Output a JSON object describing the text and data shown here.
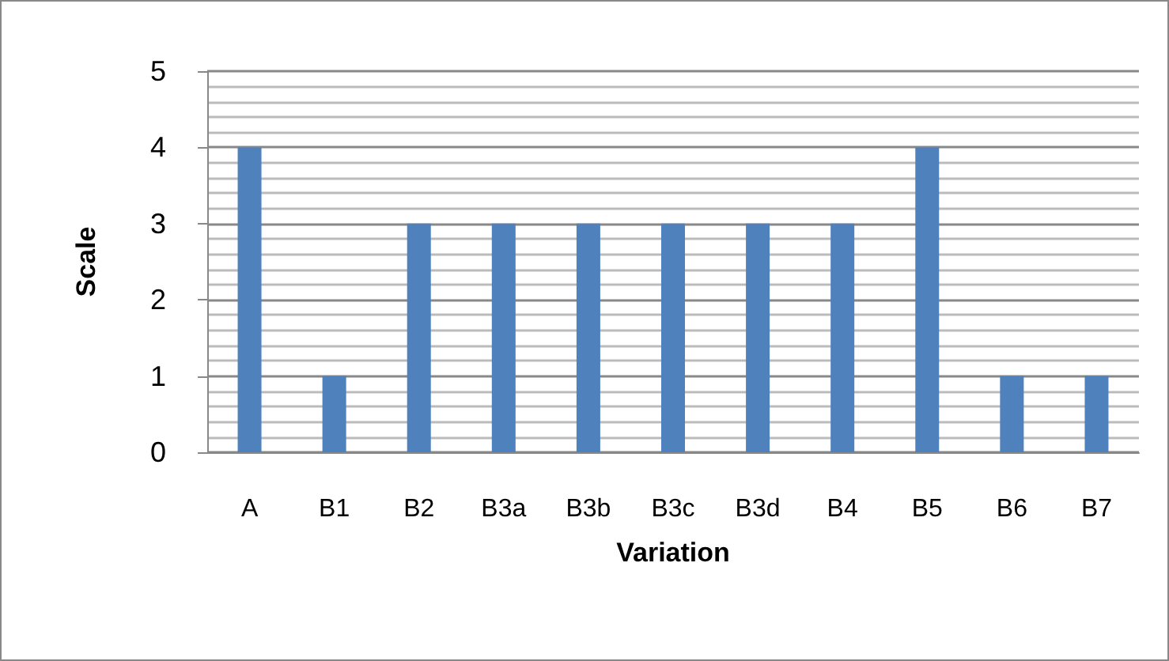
{
  "chart_data": {
    "type": "bar",
    "xlabel": "Variation",
    "ylabel": "Scale",
    "categories": [
      "A",
      "B1",
      "B2",
      "B3a",
      "B3b",
      "B3c",
      "B3d",
      "B4",
      "B5",
      "B6",
      "B7"
    ],
    "values": [
      4,
      1,
      3,
      3,
      3,
      3,
      3,
      3,
      4,
      1,
      1
    ],
    "color": "#4f81bd",
    "ylim": [
      0,
      5
    ],
    "yticks": [
      0,
      1,
      2,
      3,
      4,
      5
    ],
    "grid": "y"
  }
}
